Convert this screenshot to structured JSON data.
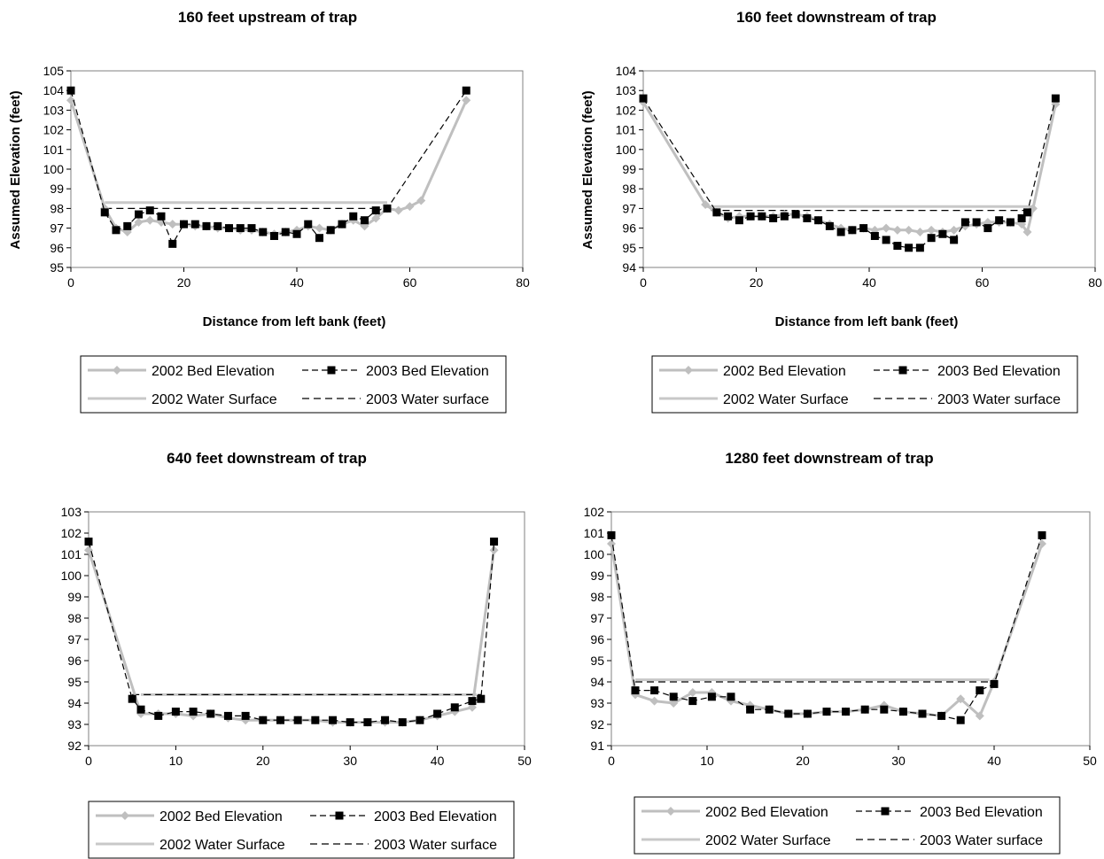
{
  "chart_data": [
    {
      "type": "line",
      "title": "160 feet upstream of trap",
      "xlabel": "Distance from left bank (feet)",
      "ylabel": "Assumed Elevation (feet)",
      "xlim": [
        0,
        80
      ],
      "ylim": [
        95,
        105
      ],
      "xticks": [
        0,
        20,
        40,
        60,
        80
      ],
      "yticks": [
        95,
        96,
        97,
        98,
        99,
        100,
        101,
        102,
        103,
        104,
        105
      ],
      "grid": false,
      "legend": "bottom",
      "series": [
        {
          "name": "2002 Bed Elevation",
          "style": "gray-diamond",
          "x": [
            0,
            6,
            8,
            10,
            12,
            14,
            16,
            18,
            20,
            22,
            24,
            26,
            28,
            30,
            32,
            34,
            36,
            38,
            40,
            42,
            44,
            46,
            48,
            50,
            52,
            54,
            56,
            58,
            60,
            62,
            70
          ],
          "y": [
            103.5,
            98.0,
            97.0,
            96.8,
            97.3,
            97.4,
            97.3,
            97.2,
            97.2,
            97.1,
            97.1,
            97.0,
            97.0,
            96.9,
            96.9,
            96.8,
            96.7,
            96.8,
            96.9,
            97.1,
            97.0,
            96.9,
            97.2,
            97.4,
            97.1,
            97.5,
            98.0,
            97.9,
            98.1,
            98.4,
            103.5
          ]
        },
        {
          "name": "2003 Bed Elevation",
          "style": "black-square",
          "x": [
            0,
            6,
            8,
            10,
            12,
            14,
            16,
            18,
            20,
            22,
            24,
            26,
            28,
            30,
            32,
            34,
            36,
            38,
            40,
            42,
            44,
            46,
            48,
            50,
            52,
            54,
            56,
            70
          ],
          "y": [
            104.0,
            97.8,
            96.9,
            97.1,
            97.7,
            97.9,
            97.6,
            96.2,
            97.2,
            97.2,
            97.1,
            97.1,
            97.0,
            97.0,
            97.0,
            96.8,
            96.6,
            96.8,
            96.7,
            97.2,
            96.5,
            96.9,
            97.2,
            97.6,
            97.4,
            97.9,
            98.0,
            104.0
          ]
        },
        {
          "name": "2002 Water Surface",
          "style": "gray-solid",
          "x": [
            6,
            56
          ],
          "y": [
            98.3,
            98.3
          ]
        },
        {
          "name": "2003 Water surface",
          "style": "black-dashed",
          "x": [
            6,
            55
          ],
          "y": [
            98.0,
            98.0
          ]
        }
      ]
    },
    {
      "type": "line",
      "title": "160 feet downstream of trap",
      "xlabel": "Distance from left bank (feet)",
      "ylabel": "Assumed Elevation (feet)",
      "xlim": [
        0,
        80
      ],
      "ylim": [
        94,
        104
      ],
      "xticks": [
        0,
        20,
        40,
        60,
        80
      ],
      "yticks": [
        94,
        95,
        96,
        97,
        98,
        99,
        100,
        101,
        102,
        103,
        104
      ],
      "grid": false,
      "legend": "bottom",
      "series": [
        {
          "name": "2002 Bed Elevation",
          "style": "gray-diamond",
          "x": [
            0,
            11,
            13,
            15,
            17,
            19,
            21,
            23,
            25,
            27,
            29,
            31,
            33,
            35,
            37,
            39,
            41,
            43,
            45,
            47,
            49,
            51,
            53,
            55,
            57,
            59,
            61,
            63,
            65,
            67,
            68,
            69,
            73
          ],
          "y": [
            102.4,
            97.2,
            96.8,
            96.5,
            96.6,
            96.6,
            96.6,
            96.6,
            96.7,
            96.7,
            96.6,
            96.4,
            96.2,
            96.0,
            95.9,
            96.0,
            95.9,
            96.0,
            95.9,
            95.9,
            95.8,
            95.9,
            95.8,
            95.9,
            96.1,
            96.2,
            96.3,
            96.3,
            96.3,
            96.2,
            95.8,
            97.0,
            102.3
          ]
        },
        {
          "name": "2003 Bed Elevation",
          "style": "black-square",
          "x": [
            0,
            13,
            15,
            17,
            19,
            21,
            23,
            25,
            27,
            29,
            31,
            33,
            35,
            37,
            39,
            41,
            43,
            45,
            47,
            49,
            51,
            53,
            55,
            57,
            59,
            61,
            63,
            65,
            67,
            68,
            73
          ],
          "y": [
            102.6,
            96.8,
            96.6,
            96.4,
            96.6,
            96.6,
            96.5,
            96.6,
            96.7,
            96.5,
            96.4,
            96.1,
            95.8,
            95.9,
            96.0,
            95.6,
            95.4,
            95.1,
            95.0,
            95.0,
            95.5,
            95.7,
            95.4,
            96.3,
            96.3,
            96.0,
            96.4,
            96.3,
            96.5,
            96.8,
            102.6
          ]
        },
        {
          "name": "2002 Water Surface",
          "style": "gray-solid",
          "x": [
            11,
            69
          ],
          "y": [
            97.1,
            97.1
          ]
        },
        {
          "name": "2003 Water surface",
          "style": "black-dashed",
          "x": [
            12,
            68
          ],
          "y": [
            96.9,
            96.9
          ]
        }
      ]
    },
    {
      "type": "line",
      "title": "640 feet downstream of trap",
      "xlabel": "",
      "ylabel": "",
      "xlim": [
        0,
        50
      ],
      "ylim": [
        92,
        103
      ],
      "xticks": [
        0,
        10,
        20,
        30,
        40,
        50
      ],
      "yticks": [
        92,
        93,
        94,
        95,
        96,
        97,
        98,
        99,
        100,
        101,
        102,
        103
      ],
      "grid": false,
      "legend": "bottom",
      "series": [
        {
          "name": "2002 Bed Elevation",
          "style": "gray-diamond",
          "x": [
            0,
            6,
            8,
            10,
            12,
            14,
            16,
            18,
            20,
            22,
            24,
            26,
            28,
            30,
            32,
            34,
            36,
            38,
            40,
            42,
            44,
            46.5
          ],
          "y": [
            101.2,
            93.5,
            93.5,
            93.5,
            93.4,
            93.5,
            93.3,
            93.2,
            93.2,
            93.2,
            93.2,
            93.2,
            93.1,
            93.1,
            93.1,
            93.1,
            93.1,
            93.2,
            93.4,
            93.6,
            93.8,
            101.2
          ]
        },
        {
          "name": "2003 Bed Elevation",
          "style": "black-square",
          "x": [
            0,
            5,
            6,
            8,
            10,
            12,
            14,
            16,
            18,
            20,
            22,
            24,
            26,
            28,
            30,
            32,
            34,
            36,
            38,
            40,
            42,
            44,
            45,
            46.5
          ],
          "y": [
            101.6,
            94.2,
            93.7,
            93.4,
            93.6,
            93.6,
            93.5,
            93.4,
            93.4,
            93.2,
            93.2,
            93.2,
            93.2,
            93.2,
            93.1,
            93.1,
            93.2,
            93.1,
            93.2,
            93.5,
            93.8,
            94.1,
            94.2,
            101.6
          ]
        },
        {
          "name": "2002 Water Surface",
          "style": "gray-solid",
          "x": [
            6,
            44.5
          ],
          "y": [
            94.4,
            94.4
          ]
        },
        {
          "name": "2003 Water surface",
          "style": "black-dashed",
          "x": [
            5,
            45
          ],
          "y": [
            94.4,
            94.4
          ]
        }
      ]
    },
    {
      "type": "line",
      "title": "1280 feet downstream of trap",
      "xlabel": "",
      "ylabel": "",
      "xlim": [
        0,
        50
      ],
      "ylim": [
        91,
        102
      ],
      "xticks": [
        0,
        10,
        20,
        30,
        40,
        50
      ],
      "yticks": [
        91,
        92,
        93,
        94,
        95,
        96,
        97,
        98,
        99,
        100,
        101,
        102
      ],
      "grid": false,
      "legend": "bottom",
      "series": [
        {
          "name": "2002 Bed Elevation",
          "style": "gray-diamond",
          "x": [
            0,
            2.5,
            4.5,
            6.5,
            8.5,
            10.5,
            12.5,
            14.5,
            16.5,
            18.5,
            20.5,
            22.5,
            24.5,
            26.5,
            28.5,
            30.5,
            32.5,
            34.5,
            36.5,
            38.5,
            40,
            45
          ],
          "y": [
            100.5,
            93.4,
            93.1,
            93.0,
            93.5,
            93.5,
            93.1,
            92.9,
            92.7,
            92.5,
            92.5,
            92.6,
            92.6,
            92.7,
            92.9,
            92.6,
            92.5,
            92.4,
            93.2,
            92.4,
            94.0,
            100.5
          ]
        },
        {
          "name": "2003 Bed Elevation",
          "style": "black-square",
          "x": [
            0,
            2.5,
            4.5,
            6.5,
            8.5,
            10.5,
            12.5,
            14.5,
            16.5,
            18.5,
            20.5,
            22.5,
            24.5,
            26.5,
            28.5,
            30.5,
            32.5,
            34.5,
            36.5,
            38.5,
            40,
            45
          ],
          "y": [
            100.9,
            93.6,
            93.6,
            93.3,
            93.1,
            93.3,
            93.3,
            92.7,
            92.7,
            92.5,
            92.5,
            92.6,
            92.6,
            92.7,
            92.7,
            92.6,
            92.5,
            92.4,
            92.2,
            93.6,
            93.9,
            100.9
          ]
        },
        {
          "name": "2002 Water Surface",
          "style": "gray-solid",
          "x": [
            2.5,
            39.5
          ],
          "y": [
            94.1,
            94.1
          ]
        },
        {
          "name": "2003 Water surface",
          "style": "black-dashed",
          "x": [
            2.5,
            39.5
          ],
          "y": [
            94.0,
            94.0
          ]
        }
      ]
    }
  ]
}
